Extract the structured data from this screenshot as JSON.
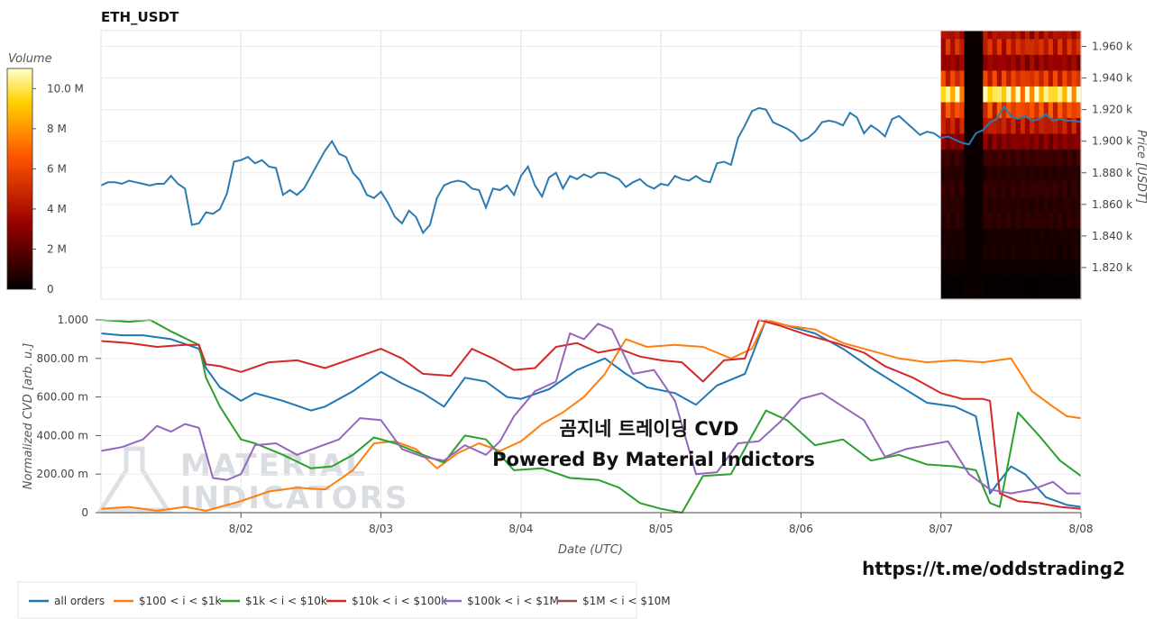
{
  "chart_data": [
    {
      "type": "line",
      "title": "ETH_USDT",
      "ylabel": "Price [USDT]",
      "y_tick_labels": [
        "1.820 k",
        "1.840 k",
        "1.860 k",
        "1.880 k",
        "1.900 k",
        "1.920 k",
        "1.940 k",
        "1.960 k"
      ],
      "y_ticks": [
        1820,
        1840,
        1860,
        1880,
        1900,
        1920,
        1940,
        1960
      ],
      "ylim": [
        1800,
        1970
      ],
      "xlim": [
        1.0,
        8.0
      ],
      "color": "#2b7bb0",
      "x": [
        1.0,
        1.05,
        1.1,
        1.15,
        1.2,
        1.25,
        1.3,
        1.35,
        1.4,
        1.45,
        1.5,
        1.55,
        1.6,
        1.65,
        1.7,
        1.75,
        1.8,
        1.85,
        1.9,
        1.95,
        2.0,
        2.05,
        2.1,
        2.15,
        2.2,
        2.25,
        2.3,
        2.35,
        2.4,
        2.45,
        2.5,
        2.55,
        2.6,
        2.65,
        2.7,
        2.75,
        2.8,
        2.85,
        2.9,
        2.95,
        3.0,
        3.05,
        3.1,
        3.15,
        3.2,
        3.25,
        3.3,
        3.35,
        3.4,
        3.45,
        3.5,
        3.55,
        3.6,
        3.65,
        3.7,
        3.75,
        3.8,
        3.85,
        3.9,
        3.95,
        4.0,
        4.05,
        4.1,
        4.15,
        4.2,
        4.25,
        4.3,
        4.35,
        4.4,
        4.45,
        4.5,
        4.55,
        4.6,
        4.65,
        4.7,
        4.75,
        4.8,
        4.85,
        4.9,
        4.95,
        5.0,
        5.05,
        5.1,
        5.15,
        5.2,
        5.25,
        5.3,
        5.35,
        5.4,
        5.45,
        5.5,
        5.55,
        5.6,
        5.65,
        5.7,
        5.75,
        5.8,
        5.85,
        5.9,
        5.95,
        6.0,
        6.05,
        6.1,
        6.15,
        6.2,
        6.25,
        6.3,
        6.35,
        6.4,
        6.45,
        6.5,
        6.55,
        6.6,
        6.65,
        6.7,
        6.75,
        6.8,
        6.85,
        6.9,
        6.95,
        7.0,
        7.05,
        7.1,
        7.15,
        7.2,
        7.25,
        7.3,
        7.35,
        7.4,
        7.45,
        7.5,
        7.55,
        7.6,
        7.65,
        7.7,
        7.75,
        7.8,
        7.85,
        7.9,
        7.95,
        8.0
      ],
      "y": [
        1872,
        1874,
        1874,
        1873,
        1875,
        1874,
        1873,
        1872,
        1873,
        1873,
        1878,
        1873,
        1870,
        1847,
        1848,
        1855,
        1854,
        1857,
        1867,
        1887,
        1888,
        1890,
        1886,
        1888,
        1884,
        1883,
        1866,
        1869,
        1866,
        1870,
        1878,
        1886,
        1894,
        1900,
        1892,
        1890,
        1880,
        1875,
        1866,
        1864,
        1868,
        1861,
        1852,
        1848,
        1856,
        1852,
        1842,
        1847,
        1864,
        1872,
        1874,
        1875,
        1874,
        1870,
        1869,
        1858,
        1870,
        1869,
        1872,
        1866,
        1878,
        1884,
        1872,
        1865,
        1877,
        1880,
        1870,
        1878,
        1876,
        1879,
        1877,
        1880,
        1880,
        1878,
        1876,
        1871,
        1874,
        1876,
        1872,
        1870,
        1873,
        1872,
        1878,
        1876,
        1875,
        1878,
        1875,
        1874,
        1886,
        1887,
        1885,
        1902,
        1910,
        1919,
        1921,
        1920,
        1912,
        1910,
        1908,
        1905,
        1900,
        1902,
        1906,
        1912,
        1913,
        1912,
        1910,
        1918,
        1915,
        1905,
        1910,
        1907,
        1903,
        1914,
        1916,
        1912,
        1908,
        1904,
        1906,
        1905,
        1902,
        1903,
        1901,
        1899,
        1898,
        1905,
        1907,
        1912,
        1914,
        1922,
        1916,
        1914,
        1916,
        1913,
        1914,
        1917,
        1913,
        1914,
        1913,
        1913,
        1912
      ]
    },
    {
      "type": "heatmap",
      "colorbar_label": "Volume",
      "colorbar_ticks": [
        "0",
        "2 M",
        "4 M",
        "6 M",
        "8 M",
        "10.0 M"
      ],
      "colorbar_values": [
        0,
        2,
        4,
        6,
        8,
        10
      ],
      "vmax": 11,
      "x_range": [
        7.0,
        8.0
      ],
      "price_levels": [
        1810,
        1820,
        1830,
        1840,
        1850,
        1860,
        1870,
        1880,
        1890,
        1900,
        1910,
        1920,
        1930,
        1940,
        1950,
        1960,
        1970
      ],
      "gap_x_range": [
        7.17,
        7.31
      ],
      "level_intensity": [
        0.1,
        0.25,
        0.5,
        0.5,
        0.9,
        0.8,
        1.0,
        0.8,
        1.2,
        2.6,
        4.0,
        5.5,
        9.0,
        5.0,
        3.0,
        4.5,
        3.6
      ]
    },
    {
      "type": "line",
      "xlabel": "Date (UTC)",
      "ylabel": "Normalized CVD [arb. u.]",
      "x_tick_labels": [
        "8/02",
        "8/03",
        "8/04",
        "8/05",
        "8/06",
        "8/07",
        "8/08"
      ],
      "x_ticks": [
        2,
        3,
        4,
        5,
        6,
        7,
        8
      ],
      "xlim": [
        1.0,
        8.0
      ],
      "y_tick_labels": [
        "0",
        "200.00 m",
        "400.00 m",
        "600.00 m",
        "800.00 m",
        "1.000"
      ],
      "y_ticks": [
        0,
        0.2,
        0.4,
        0.6,
        0.8,
        1.0
      ],
      "ylim": [
        0,
        1.0
      ],
      "legend_position": "bottom",
      "series": [
        {
          "name": "all orders",
          "color": "#1f77b4",
          "x": [
            1.0,
            1.15,
            1.3,
            1.5,
            1.7,
            1.75,
            1.85,
            2.0,
            2.1,
            2.3,
            2.5,
            2.6,
            2.8,
            3.0,
            3.15,
            3.3,
            3.45,
            3.6,
            3.75,
            3.9,
            4.0,
            4.2,
            4.4,
            4.6,
            4.75,
            4.9,
            5.1,
            5.25,
            5.4,
            5.6,
            5.75,
            5.9,
            6.1,
            6.3,
            6.5,
            6.7,
            6.9,
            7.1,
            7.25,
            7.35,
            7.5,
            7.6,
            7.75,
            7.9,
            8.0
          ],
          "y": [
            0.93,
            0.92,
            0.92,
            0.9,
            0.85,
            0.75,
            0.65,
            0.58,
            0.62,
            0.58,
            0.53,
            0.55,
            0.63,
            0.73,
            0.67,
            0.62,
            0.55,
            0.7,
            0.68,
            0.6,
            0.59,
            0.64,
            0.74,
            0.8,
            0.72,
            0.65,
            0.62,
            0.56,
            0.66,
            0.72,
            1.0,
            0.97,
            0.93,
            0.85,
            0.75,
            0.66,
            0.57,
            0.55,
            0.5,
            0.1,
            0.24,
            0.2,
            0.08,
            0.04,
            0.03
          ]
        },
        {
          "name": "$100 < i < $1k",
          "color": "#ff7f0e",
          "x": [
            1.0,
            1.2,
            1.4,
            1.6,
            1.75,
            1.85,
            2.0,
            2.2,
            2.4,
            2.6,
            2.8,
            2.95,
            3.1,
            3.25,
            3.4,
            3.55,
            3.7,
            3.85,
            4.0,
            4.15,
            4.3,
            4.45,
            4.6,
            4.75,
            4.9,
            5.1,
            5.3,
            5.5,
            5.65,
            5.75,
            5.9,
            6.1,
            6.3,
            6.5,
            6.7,
            6.9,
            7.1,
            7.3,
            7.5,
            7.65,
            7.8,
            7.9,
            8.0
          ],
          "y": [
            0.02,
            0.03,
            0.01,
            0.03,
            0.01,
            0.03,
            0.06,
            0.11,
            0.13,
            0.12,
            0.22,
            0.36,
            0.37,
            0.33,
            0.23,
            0.31,
            0.36,
            0.32,
            0.37,
            0.46,
            0.52,
            0.6,
            0.72,
            0.9,
            0.86,
            0.87,
            0.86,
            0.8,
            0.85,
            1.0,
            0.97,
            0.95,
            0.88,
            0.84,
            0.8,
            0.78,
            0.79,
            0.78,
            0.8,
            0.63,
            0.55,
            0.5,
            0.49
          ]
        },
        {
          "name": "$1k < i < $10k",
          "color": "#2ca02c",
          "x": [
            1.0,
            1.2,
            1.35,
            1.5,
            1.7,
            1.75,
            1.85,
            2.0,
            2.1,
            2.3,
            2.5,
            2.65,
            2.8,
            2.95,
            3.1,
            3.3,
            3.45,
            3.6,
            3.75,
            3.95,
            4.15,
            4.35,
            4.55,
            4.7,
            4.85,
            5.0,
            5.15,
            5.3,
            5.5,
            5.65,
            5.75,
            5.9,
            6.1,
            6.3,
            6.5,
            6.7,
            6.9,
            7.1,
            7.25,
            7.35,
            7.42,
            7.55,
            7.7,
            7.85,
            8.0
          ],
          "y": [
            1.0,
            0.99,
            1.0,
            0.94,
            0.87,
            0.7,
            0.55,
            0.38,
            0.36,
            0.3,
            0.23,
            0.24,
            0.3,
            0.39,
            0.36,
            0.3,
            0.26,
            0.4,
            0.38,
            0.22,
            0.23,
            0.18,
            0.17,
            0.13,
            0.05,
            0.02,
            0.0,
            0.19,
            0.2,
            0.4,
            0.53,
            0.48,
            0.35,
            0.38,
            0.27,
            0.3,
            0.25,
            0.24,
            0.22,
            0.05,
            0.03,
            0.52,
            0.4,
            0.27,
            0.19
          ]
        },
        {
          "name": "$10k < i < $100k",
          "color": "#d62728",
          "x": [
            1.0,
            1.2,
            1.4,
            1.6,
            1.7,
            1.75,
            1.85,
            2.0,
            2.2,
            2.4,
            2.6,
            2.8,
            3.0,
            3.15,
            3.3,
            3.5,
            3.65,
            3.8,
            3.95,
            4.1,
            4.25,
            4.4,
            4.55,
            4.7,
            4.85,
            5.0,
            5.15,
            5.3,
            5.45,
            5.6,
            5.7,
            5.85,
            6.05,
            6.25,
            6.45,
            6.6,
            6.8,
            7.0,
            7.15,
            7.3,
            7.35,
            7.42,
            7.55,
            7.7,
            7.85,
            8.0
          ],
          "y": [
            0.89,
            0.88,
            0.86,
            0.87,
            0.87,
            0.77,
            0.76,
            0.73,
            0.78,
            0.79,
            0.75,
            0.8,
            0.85,
            0.8,
            0.72,
            0.71,
            0.85,
            0.8,
            0.74,
            0.75,
            0.86,
            0.88,
            0.83,
            0.85,
            0.81,
            0.79,
            0.78,
            0.68,
            0.79,
            0.8,
            1.0,
            0.97,
            0.92,
            0.88,
            0.83,
            0.76,
            0.7,
            0.62,
            0.59,
            0.59,
            0.58,
            0.1,
            0.06,
            0.05,
            0.03,
            0.02
          ]
        },
        {
          "name": "$100k < i < $1M",
          "color": "#9467bd",
          "x": [
            1.0,
            1.15,
            1.3,
            1.4,
            1.5,
            1.6,
            1.7,
            1.8,
            1.9,
            2.0,
            2.1,
            2.25,
            2.4,
            2.55,
            2.7,
            2.85,
            3.0,
            3.15,
            3.3,
            3.45,
            3.6,
            3.75,
            3.85,
            3.95,
            4.1,
            4.25,
            4.35,
            4.45,
            4.55,
            4.65,
            4.8,
            4.95,
            5.1,
            5.25,
            5.4,
            5.55,
            5.7,
            5.85,
            6.0,
            6.15,
            6.3,
            6.45,
            6.6,
            6.75,
            6.9,
            7.05,
            7.2,
            7.35,
            7.5,
            7.65,
            7.8,
            7.9,
            8.0
          ],
          "y": [
            0.32,
            0.34,
            0.38,
            0.45,
            0.42,
            0.46,
            0.44,
            0.18,
            0.17,
            0.2,
            0.35,
            0.36,
            0.3,
            0.34,
            0.38,
            0.49,
            0.48,
            0.33,
            0.29,
            0.27,
            0.35,
            0.3,
            0.37,
            0.5,
            0.63,
            0.68,
            0.93,
            0.9,
            0.98,
            0.95,
            0.72,
            0.74,
            0.58,
            0.2,
            0.21,
            0.36,
            0.37,
            0.47,
            0.59,
            0.62,
            0.55,
            0.48,
            0.29,
            0.33,
            0.35,
            0.37,
            0.2,
            0.12,
            0.1,
            0.12,
            0.16,
            0.1,
            0.1
          ]
        }
      ],
      "legend_extra": [
        {
          "name": "$1M < i < $10M",
          "color": "#8c564b"
        }
      ]
    }
  ],
  "overlay": {
    "line1": "곰지네 트레이딩 CVD",
    "line2": "Powered By Material Indictors",
    "link": "https://t.me/oddstrading2",
    "watermark_line1": "MATERIAL",
    "watermark_line2": "INDICATORS"
  }
}
